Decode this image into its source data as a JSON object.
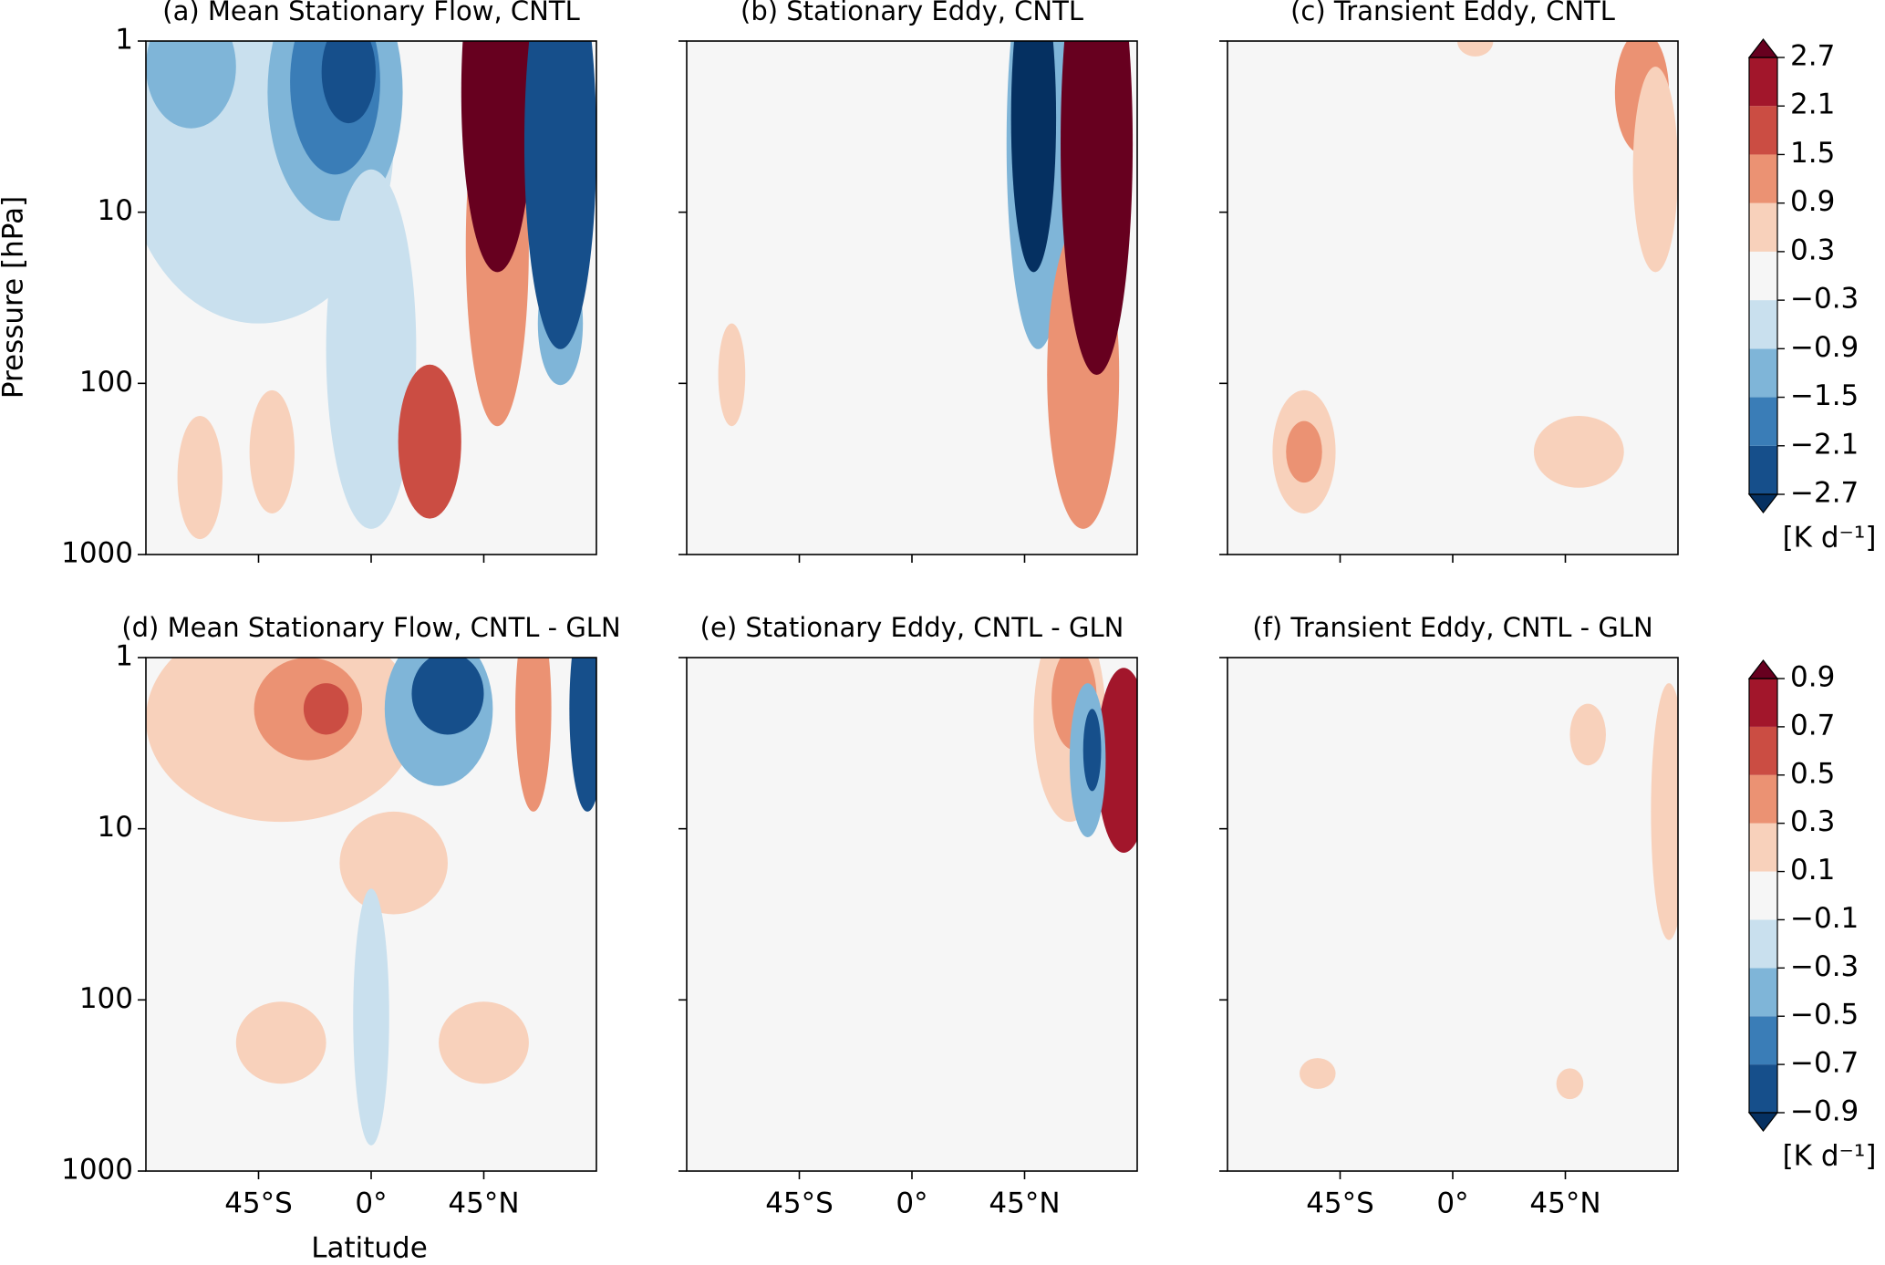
{
  "chart_data": {
    "type": "contour",
    "yscale": "log",
    "xlabel": "Latitude",
    "ylabel": "Pressure [hPa]",
    "xlim": [
      -90,
      90
    ],
    "ylim": [
      1000,
      1
    ],
    "xticks": [
      {
        "value": -45,
        "label": "45°S"
      },
      {
        "value": 0,
        "label": "0°"
      },
      {
        "value": 45,
        "label": "45°N"
      }
    ],
    "yticks": [
      1,
      10,
      100,
      1000
    ],
    "panels": [
      {
        "title": "(a) Mean Stationary Flow, CNTL"
      },
      {
        "title": "(b) Stationary Eddy, CNTL"
      },
      {
        "title": "(c) Transient Eddy, CNTL"
      },
      {
        "title": "(d) Mean Stationary Flow, CNTL - GLN"
      },
      {
        "title": "(e) Stationary Eddy, CNTL - GLN"
      },
      {
        "title": "(f) Transient Eddy, CNTL - GLN"
      }
    ],
    "colorbars": [
      {
        "unit": "[K d⁻¹]",
        "ticks": [
          {
            "value": -2.7,
            "label": "−2.7"
          },
          {
            "value": -2.1,
            "label": "−2.1"
          },
          {
            "value": -1.5,
            "label": "−1.5"
          },
          {
            "value": -0.9,
            "label": "−0.9"
          },
          {
            "value": -0.3,
            "label": "−0.3"
          },
          0.3,
          0.9,
          1.5,
          2.1,
          2.7
        ],
        "colors": [
          "#053061",
          "#164f8b",
          "#3a7db7",
          "#7fb5d8",
          "#c9e0ee",
          "#f6f6f6",
          "#f8d1bb",
          "#eb9273",
          "#cb4d43",
          "#a2162b",
          "#67001f"
        ]
      },
      {
        "unit": "[K d⁻¹]",
        "ticks": [
          {
            "value": -0.9,
            "label": "−0.9"
          },
          {
            "value": -0.7,
            "label": "−0.7"
          },
          {
            "value": -0.5,
            "label": "−0.5"
          },
          {
            "value": -0.3,
            "label": "−0.3"
          },
          {
            "value": -0.1,
            "label": "−0.1"
          },
          0.1,
          0.3,
          0.5,
          0.7,
          0.9
        ],
        "colors": [
          "#053061",
          "#164f8b",
          "#3a7db7",
          "#7fb5d8",
          "#c9e0ee",
          "#f6f6f6",
          "#f8d1bb",
          "#eb9273",
          "#cb4d43",
          "#a2162b",
          "#67001f"
        ]
      }
    ]
  }
}
